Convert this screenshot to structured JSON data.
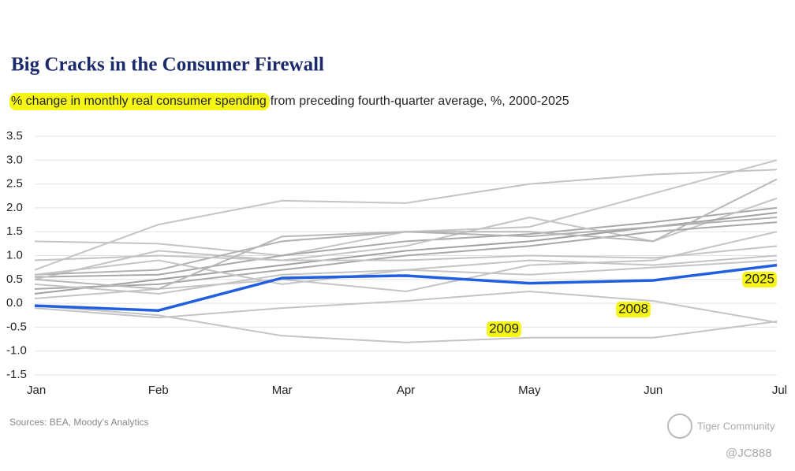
{
  "chart_data": {
    "type": "line",
    "title": "Big Cracks in the Consumer Firewall",
    "subtitle_highlight": "% change in monthly real consumer spending",
    "subtitle_rest": "from preceding fourth-quarter average, %, 2000-2025",
    "source": "Sources: BEA, Moody’s Analytics",
    "watermark": "Tiger Community",
    "handle": "@JC888",
    "categories": [
      "Jan",
      "Feb",
      "Mar",
      "Apr",
      "May",
      "Jun",
      "Jul"
    ],
    "ylim": [
      -1.5,
      3.5
    ],
    "yticks": [
      3.5,
      {
        "value": 3,
        "label": "3.0"
      },
      2.5,
      {
        "value": 2,
        "label": "2.0"
      },
      1.5,
      {
        "value": 1,
        "label": "1.0"
      },
      0.5,
      {
        "value": 0,
        "label": "0.0"
      },
      -0.5,
      {
        "value": -1,
        "label": "-1.0"
      },
      -1.5
    ],
    "grid": true,
    "series": [
      {
        "color": "#c4c4c4",
        "values": [
          0.7,
          1.65,
          2.15,
          2.1,
          2.5,
          2.7,
          2.8
        ]
      },
      {
        "color": "#c4c4c4",
        "values": [
          1.3,
          1.25,
          1.0,
          1.5,
          1.6,
          2.3,
          3.0
        ]
      },
      {
        "color": "#a8a8a8",
        "values": [
          0.55,
          0.6,
          1.0,
          1.3,
          1.45,
          1.7,
          2.0
        ]
      },
      {
        "color": "#c4c4c4",
        "values": [
          0.5,
          1.1,
          0.9,
          1.2,
          1.8,
          1.3,
          2.2
        ]
      },
      {
        "color": "#a0a0a0",
        "values": [
          0.2,
          0.5,
          0.8,
          1.1,
          1.3,
          1.6,
          1.9
        ]
      },
      {
        "color": "#b0b0b0",
        "values": [
          0.6,
          0.7,
          1.3,
          1.5,
          1.4,
          1.6,
          1.8
        ]
      },
      {
        "color": "#a8a8a8",
        "values": [
          0.3,
          0.4,
          0.7,
          1.0,
          1.2,
          1.5,
          1.7
        ]
      },
      {
        "color": "#c4c4c4",
        "values": [
          0.9,
          1.0,
          0.9,
          0.9,
          1.0,
          0.95,
          1.2
        ]
      },
      {
        "color": "#c4c4c4",
        "values": [
          0.4,
          0.2,
          0.6,
          0.7,
          0.9,
          0.8,
          1.0
        ]
      },
      {
        "color": "#c4c4c4",
        "values": [
          0.1,
          0.3,
          0.5,
          0.25,
          0.8,
          0.9,
          1.5
        ]
      },
      {
        "color": "#c4c4c4",
        "values": [
          0.6,
          0.9,
          0.4,
          0.7,
          0.6,
          0.75,
          0.9
        ]
      },
      {
        "color": "#b8b8b8",
        "values": [
          0.5,
          0.3,
          1.4,
          1.5,
          1.5,
          1.3,
          2.6
        ]
      },
      {
        "name": "2008",
        "color": "#c4c4c4",
        "values": [
          -0.1,
          -0.3,
          -0.1,
          0.05,
          0.25,
          0.05,
          -0.4
        ]
      },
      {
        "name": "2009",
        "color": "#c4c4c4",
        "values": [
          -0.05,
          -0.25,
          -0.68,
          -0.82,
          -0.72,
          -0.72,
          -0.38
        ]
      },
      {
        "name": "2025",
        "color": "#1f5fe0",
        "values": [
          -0.05,
          -0.15,
          0.53,
          0.58,
          0.42,
          0.48,
          0.8
        ]
      }
    ]
  }
}
